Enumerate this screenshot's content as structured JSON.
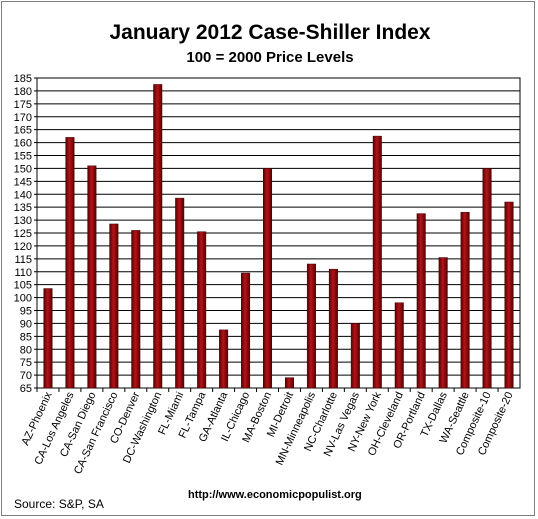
{
  "chart_data": {
    "type": "bar",
    "title": "January 2012 Case-Shiller Index",
    "subtitle": "100 = 2000 Price Levels",
    "xlabel": "",
    "ylabel": "",
    "ylim": [
      65,
      185
    ],
    "ytick_step": 5,
    "grid": true,
    "legend": "none",
    "bar_color": "#b3141a",
    "bar_color_dark": "#5a0000",
    "categories": [
      "AZ-Phoenix",
      "CA-Los Angeles",
      "CA-San Diego",
      "CA-San Francisco",
      "CO-Denver",
      "DC-Washington",
      "FL-Miami",
      "FL-Tampa",
      "GA-Atlanta",
      "IL-Chicago",
      "MA-Boston",
      "MI-Detroit",
      "MN-Minneapolis",
      "NC-Charlotte",
      "NV-Las Vegas",
      "NY-New York",
      "OH-Cleveland",
      "OR-Portland",
      "TX-Dallas",
      "WA-Seattle",
      "Composite-10",
      "Composite-20"
    ],
    "values": [
      103.5,
      162,
      151,
      128.5,
      126,
      182.5,
      138.5,
      125.5,
      87.5,
      109.5,
      150,
      69,
      113,
      111,
      90,
      162.5,
      98,
      132.5,
      115.5,
      133,
      150,
      137
    ]
  },
  "footer": {
    "source": "Source:  S&P, SA",
    "url": "http://www.economicpopulist.org"
  }
}
